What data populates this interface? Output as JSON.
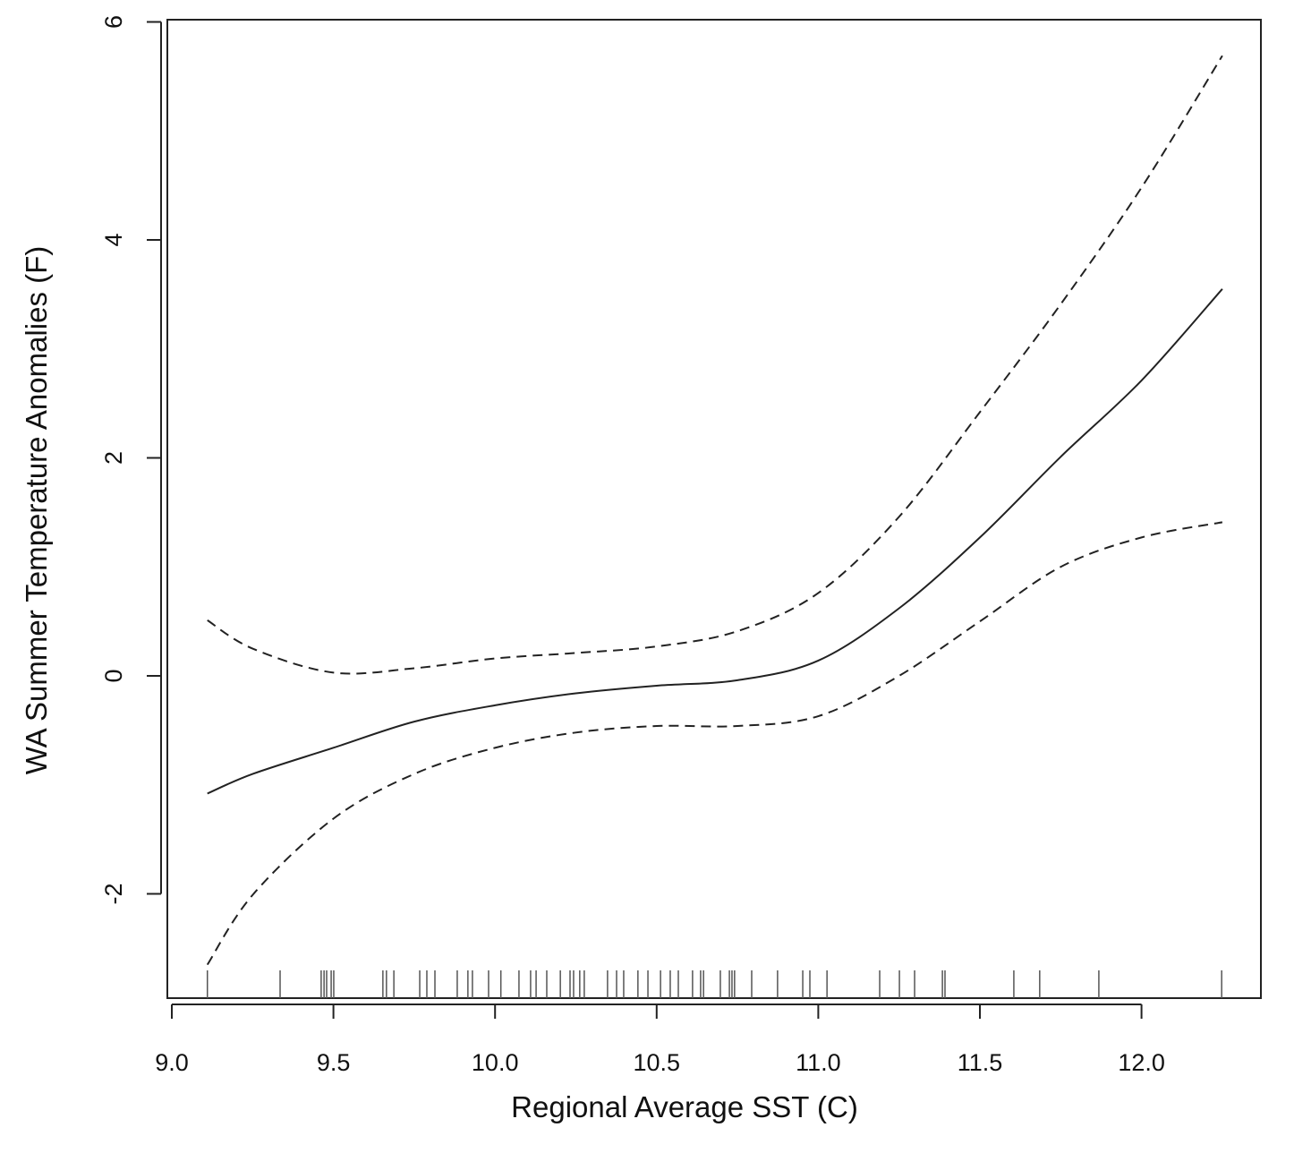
{
  "chart_data": {
    "type": "line",
    "title": "",
    "xlabel": "Regional Average SST (C)",
    "ylabel": "WA Summer Temperature Anomalies (F)",
    "xlim": [
      8.986,
      12.37
    ],
    "ylim": [
      -2.96,
      6.02
    ],
    "xticks": [
      9.0,
      9.5,
      10.0,
      10.5,
      11.0,
      11.5,
      12.0
    ],
    "xtick_labels": [
      "9.0",
      "9.5",
      "10.0",
      "10.5",
      "11.0",
      "11.5",
      "12.0"
    ],
    "yticks": [
      -2,
      0,
      2,
      4,
      6
    ],
    "ytick_labels": [
      "-2",
      "0",
      "2",
      "4",
      "6"
    ],
    "grid": false,
    "series": [
      {
        "name": "fit",
        "style": "solid",
        "x": [
          9.11,
          9.25,
          9.5,
          9.75,
          10.0,
          10.25,
          10.5,
          10.75,
          11.0,
          11.25,
          11.5,
          11.75,
          12.0,
          12.25
        ],
        "y": [
          -1.08,
          -0.9,
          -0.66,
          -0.42,
          -0.27,
          -0.16,
          -0.09,
          -0.04,
          0.14,
          0.62,
          1.27,
          2.01,
          2.71,
          3.55
        ]
      },
      {
        "name": "upper confidence band",
        "style": "dashed",
        "x": [
          9.11,
          9.25,
          9.5,
          9.75,
          10.0,
          10.25,
          10.5,
          10.75,
          11.0,
          11.25,
          11.5,
          11.75,
          12.0,
          12.25
        ],
        "y": [
          0.51,
          0.25,
          0.03,
          0.07,
          0.16,
          0.21,
          0.27,
          0.41,
          0.76,
          1.46,
          2.42,
          3.41,
          4.48,
          5.69
        ]
      },
      {
        "name": "lower confidence band",
        "style": "dashed",
        "x": [
          9.11,
          9.25,
          9.5,
          9.75,
          10.0,
          10.25,
          10.5,
          10.75,
          11.0,
          11.25,
          11.5,
          11.75,
          12.0,
          12.25
        ],
        "y": [
          -2.65,
          -2.01,
          -1.31,
          -0.9,
          -0.66,
          -0.52,
          -0.46,
          -0.46,
          -0.37,
          0.0,
          0.5,
          1.0,
          1.27,
          1.41
        ]
      }
    ],
    "rug": [
      9.11,
      9.335,
      9.462,
      9.471,
      9.479,
      9.493,
      9.501,
      9.653,
      9.664,
      9.687,
      9.767,
      9.789,
      9.814,
      9.883,
      9.916,
      9.93,
      9.98,
      10.018,
      10.074,
      10.11,
      10.127,
      10.16,
      10.202,
      10.232,
      10.243,
      10.262,
      10.276,
      10.348,
      10.376,
      10.398,
      10.442,
      10.473,
      10.512,
      10.542,
      10.567,
      10.611,
      10.636,
      10.645,
      10.697,
      10.725,
      10.733,
      10.741,
      10.794,
      10.874,
      10.952,
      10.974,
      11.027,
      11.19,
      11.251,
      11.298,
      11.384,
      11.392,
      11.605,
      11.685,
      11.868,
      12.248
    ]
  }
}
